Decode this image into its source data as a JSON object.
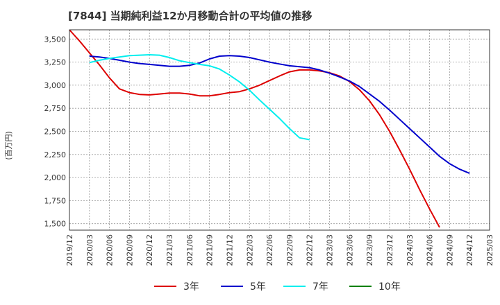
{
  "chart_data": {
    "type": "line",
    "title": "[7844]  当期純利益12か月移動合計の平均値の推移",
    "ylabel": "(百万円)",
    "xlabel": "",
    "ylim": [
      1430,
      3600
    ],
    "y_ticks": [
      1500,
      1750,
      2000,
      2250,
      2500,
      2750,
      3000,
      3250,
      3500
    ],
    "y_tick_labels": [
      "1,500",
      "1,750",
      "2,000",
      "2,250",
      "2,500",
      "2,750",
      "3,000",
      "3,250",
      "3,500"
    ],
    "x_tick_labels": [
      "2019/12",
      "2020/03",
      "2020/06",
      "2020/09",
      "2020/12",
      "2021/03",
      "2021/06",
      "2021/09",
      "2021/12",
      "2022/03",
      "2022/06",
      "2022/09",
      "2022/12",
      "2023/03",
      "2023/06",
      "2023/09",
      "2023/12",
      "2024/03",
      "2024/06",
      "2024/09",
      "2024/12",
      "2025/03"
    ],
    "grid": true,
    "legend_position": "bottom",
    "series": [
      {
        "name": "3年",
        "color": "#dd0000",
        "start_index": 0,
        "values": [
          3600,
          3480,
          3350,
          3220,
          3080,
          2960,
          2920,
          2900,
          2895,
          2905,
          2915,
          2915,
          2905,
          2885,
          2885,
          2900,
          2920,
          2930,
          2960,
          3000,
          3050,
          3100,
          3145,
          3165,
          3165,
          3155,
          3135,
          3100,
          3040,
          2950,
          2830,
          2680,
          2500,
          2300,
          2090,
          1870,
          1660,
          1460
        ]
      },
      {
        "name": "5年",
        "color": "#0000cc",
        "start_index": 2,
        "values": [
          3315,
          3305,
          3290,
          3270,
          3250,
          3235,
          3225,
          3215,
          3205,
          3205,
          3215,
          3240,
          3285,
          3315,
          3320,
          3315,
          3300,
          3275,
          3250,
          3230,
          3210,
          3200,
          3190,
          3165,
          3130,
          3090,
          3045,
          2985,
          2905,
          2825,
          2730,
          2630,
          2530,
          2430,
          2330,
          2230,
          2150,
          2090,
          2045
        ]
      },
      {
        "name": "7年",
        "color": "#00eeee",
        "start_index": 2,
        "values": [
          3245,
          3270,
          3290,
          3305,
          3320,
          3325,
          3330,
          3325,
          3300,
          3265,
          3245,
          3225,
          3210,
          3175,
          3110,
          3035,
          2945,
          2840,
          2740,
          2640,
          2530,
          2430,
          2410
        ]
      },
      {
        "name": "10年",
        "color": "#008000",
        "start_index": 0,
        "values": []
      }
    ]
  }
}
